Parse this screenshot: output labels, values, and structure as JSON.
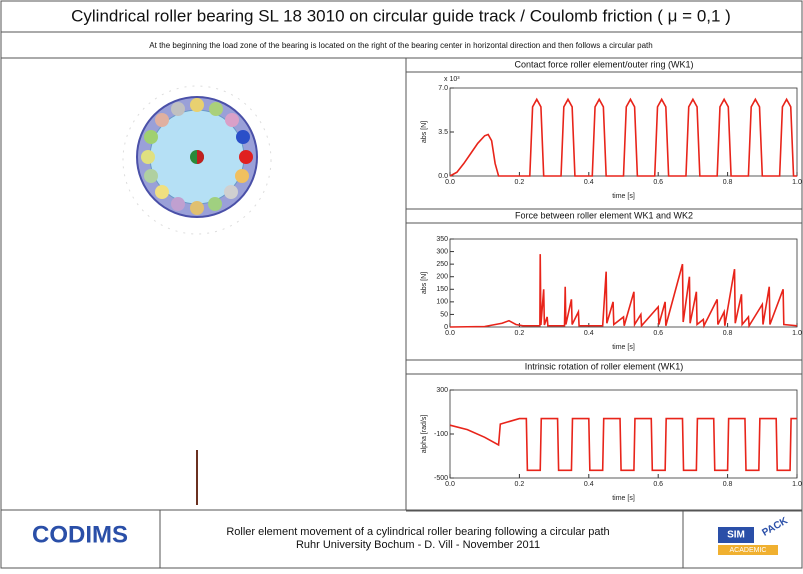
{
  "header": {
    "title": "Cylindrical roller bearing SL 18 3010 on circular guide track / Coulomb friction (  μ = 0,1 )",
    "subtitle": "At the beginning the load zone of the bearing is located on the right of the bearing center in horizontal direction and then follows a circular path"
  },
  "footer": {
    "logo_left": "CODIMS",
    "caption_line1": "Roller element movement of a cylindrical roller bearing following a circular path",
    "caption_line2": "Ruhr University Bochum - D. Vill - November 2011",
    "logo_right_top": "SIM",
    "logo_right_side": "PACK",
    "logo_right_bottom": "ACADEMIC"
  },
  "chart_data": [
    {
      "type": "line",
      "title": "Contact force roller element/outer ring (WK1)",
      "ylabel": "abs [N]",
      "xlabel": "time [s]",
      "y_multiplier": "x 10³",
      "color": "#e8241a",
      "xlim": [
        0,
        1
      ],
      "ylim": [
        0,
        7
      ],
      "xticks": [
        {
          "value": 0,
          "label": "0.0"
        },
        0.2,
        0.4,
        0.6,
        0.8,
        {
          "value": 1,
          "label": "1.0"
        }
      ],
      "yticks": [
        {
          "value": 0,
          "label": "0.0"
        },
        3.5,
        {
          "value": 7,
          "label": "7.0"
        }
      ],
      "x": [
        0,
        0.02,
        0.04,
        0.06,
        0.08,
        0.1,
        0.11,
        0.12,
        0.13,
        0.14,
        0.23,
        0.238,
        0.25,
        0.262,
        0.27,
        0.32,
        0.328,
        0.34,
        0.352,
        0.36,
        0.41,
        0.418,
        0.43,
        0.442,
        0.45,
        0.5,
        0.508,
        0.52,
        0.532,
        0.54,
        0.59,
        0.598,
        0.61,
        0.622,
        0.63,
        0.68,
        0.688,
        0.7,
        0.712,
        0.72,
        0.77,
        0.778,
        0.79,
        0.802,
        0.81,
        0.86,
        0.868,
        0.88,
        0.892,
        0.9,
        0.95,
        0.958,
        0.97,
        0.982,
        0.99,
        1.0
      ],
      "values": [
        0,
        0.3,
        1.0,
        1.8,
        2.6,
        3.2,
        3.3,
        2.8,
        1.0,
        0,
        0,
        5.5,
        6.1,
        5.5,
        0,
        0,
        5.5,
        6.1,
        5.5,
        0,
        0,
        5.5,
        6.1,
        5.5,
        0,
        0,
        5.5,
        6.1,
        5.5,
        0,
        0,
        5.5,
        6.1,
        5.5,
        0,
        0,
        5.5,
        6.1,
        5.5,
        0,
        0,
        5.5,
        6.1,
        5.5,
        0,
        0,
        5.5,
        6.1,
        5.5,
        0,
        0,
        5.5,
        6.1,
        5.5,
        0,
        0
      ]
    },
    {
      "type": "line",
      "title": "Force between roller element WK1 and WK2",
      "ylabel": "abs [N]",
      "xlabel": "time [s]",
      "color": "#e8241a",
      "xlim": [
        0,
        1
      ],
      "ylim": [
        0,
        350
      ],
      "xticks": [
        {
          "value": 0,
          "label": "0.0"
        },
        0.2,
        0.4,
        0.6,
        0.8,
        {
          "value": 1,
          "label": "1.0"
        }
      ],
      "yticks": [
        0,
        50,
        100,
        150,
        200,
        250,
        300,
        350
      ],
      "x": [
        0,
        0.1,
        0.15,
        0.17,
        0.19,
        0.21,
        0.23,
        0.259,
        0.26,
        0.262,
        0.27,
        0.272,
        0.28,
        0.282,
        0.33,
        0.332,
        0.334,
        0.35,
        0.352,
        0.37,
        0.372,
        0.44,
        0.45,
        0.452,
        0.47,
        0.472,
        0.5,
        0.502,
        0.53,
        0.532,
        0.55,
        0.552,
        0.6,
        0.602,
        0.62,
        0.622,
        0.67,
        0.672,
        0.69,
        0.692,
        0.71,
        0.712,
        0.73,
        0.732,
        0.77,
        0.772,
        0.79,
        0.792,
        0.82,
        0.822,
        0.84,
        0.842,
        0.86,
        0.862,
        0.9,
        0.902,
        0.92,
        0.922,
        0.96,
        0.962,
        1.0
      ],
      "values": [
        0,
        2,
        15,
        25,
        10,
        5,
        5,
        5,
        290,
        8,
        150,
        8,
        40,
        5,
        5,
        160,
        10,
        110,
        10,
        60,
        5,
        5,
        220,
        15,
        100,
        10,
        40,
        5,
        140,
        10,
        50,
        5,
        80,
        10,
        100,
        5,
        250,
        20,
        200,
        15,
        140,
        10,
        30,
        5,
        110,
        10,
        60,
        5,
        230,
        15,
        130,
        10,
        40,
        5,
        90,
        10,
        160,
        10,
        150,
        10,
        5
      ]
    },
    {
      "type": "line",
      "title": "Intrinsic rotation of roller element (WK1)",
      "ylabel": "alpha [rad/s]",
      "xlabel": "time [s]",
      "color": "#e8241a",
      "xlim": [
        0,
        1
      ],
      "ylim": [
        -500,
        300
      ],
      "xticks": [
        {
          "value": 0,
          "label": "0.0"
        },
        0.2,
        0.4,
        0.6,
        0.8,
        {
          "value": 1,
          "label": "1.0"
        }
      ],
      "yticks": [
        -500,
        -100,
        300
      ],
      "x": [
        0,
        0.05,
        0.1,
        0.14,
        0.145,
        0.2,
        0.22,
        0.223,
        0.26,
        0.263,
        0.31,
        0.313,
        0.35,
        0.353,
        0.4,
        0.403,
        0.44,
        0.443,
        0.49,
        0.493,
        0.53,
        0.533,
        0.58,
        0.583,
        0.62,
        0.623,
        0.67,
        0.673,
        0.71,
        0.713,
        0.76,
        0.763,
        0.8,
        0.803,
        0.85,
        0.853,
        0.89,
        0.893,
        0.94,
        0.943,
        0.98,
        0.983,
        1.0
      ],
      "values": [
        -20,
        -60,
        -130,
        -200,
        -10,
        40,
        40,
        -430,
        -430,
        40,
        40,
        -430,
        -430,
        40,
        40,
        -430,
        -430,
        40,
        40,
        -430,
        -430,
        40,
        40,
        -430,
        -430,
        40,
        40,
        -430,
        -430,
        40,
        40,
        -430,
        -430,
        40,
        40,
        -430,
        -430,
        40,
        40,
        -430,
        -430,
        40,
        40
      ]
    }
  ]
}
